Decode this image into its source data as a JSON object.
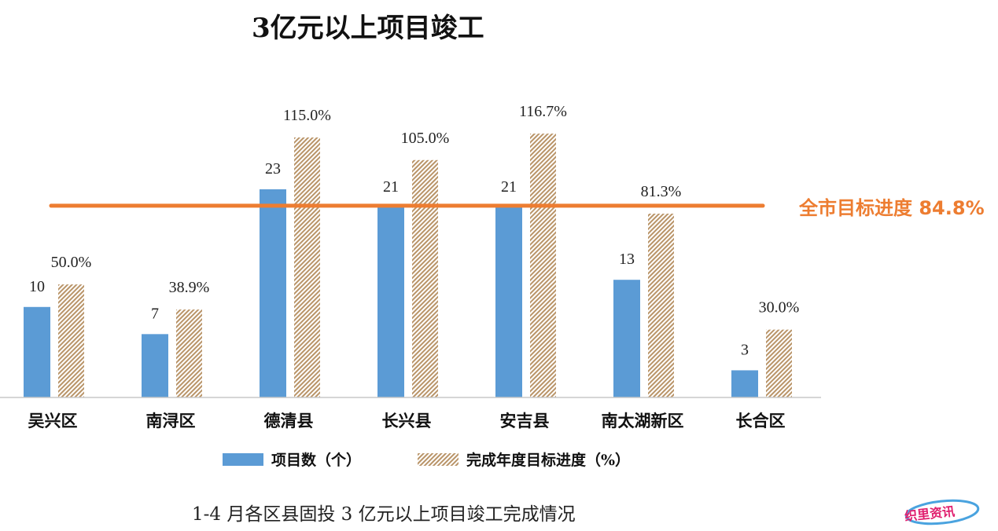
{
  "chart_data": {
    "type": "bar",
    "title": "3亿元以上项目竣工",
    "categories": [
      "吴兴区",
      "南浔区",
      "德清县",
      "长兴县",
      "安吉县",
      "南太湖新区",
      "长合区"
    ],
    "series": [
      {
        "name": "项目数（个）",
        "values": [
          10,
          7,
          23,
          21,
          21,
          13,
          3
        ],
        "labels": [
          "10",
          "7",
          "23",
          "21",
          "21",
          "13",
          "3"
        ],
        "color": "#5b9bd5"
      },
      {
        "name": "完成年度目标进度（%）",
        "values": [
          50.0,
          38.9,
          115.0,
          105.0,
          116.7,
          81.3,
          30.0
        ],
        "labels": [
          "50.0%",
          "38.9%",
          "115.0%",
          "105.0%",
          "116.7%",
          "81.3%",
          "30.0%"
        ],
        "color": "#c9a77c",
        "pattern": "diagonal-hatch"
      }
    ],
    "target_line": {
      "label": "全市目标进度 84.8%",
      "value": 84.8,
      "color": "#ed7d31"
    },
    "legend_position": "bottom",
    "grid": false
  },
  "caption": "1-4 月各区县固投 3 亿元以上项目竣工完成情况",
  "watermark": "织里资讯"
}
